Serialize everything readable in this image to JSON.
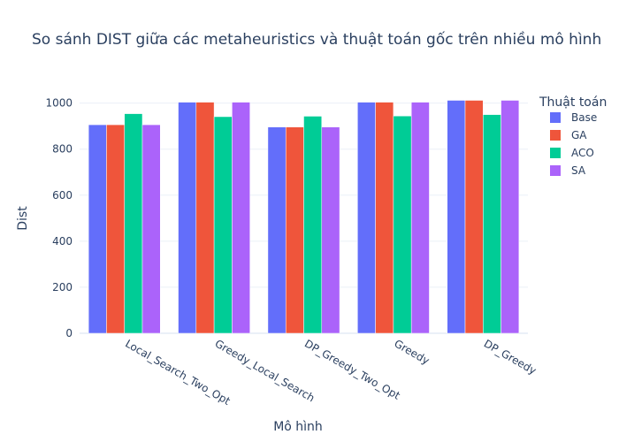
{
  "chart_data": {
    "type": "bar",
    "title": "So sánh DIST giữa các metaheuristics và thuật toán gốc trên nhiều mô hình",
    "xlabel": "Mô hình",
    "ylabel": "Dist",
    "ylim": [
      0,
      1060
    ],
    "yticks": [
      "0",
      "200",
      "400",
      "600",
      "800",
      "1000"
    ],
    "grid": true,
    "legend_title": "Thuật toán",
    "legend_position": "right",
    "categories": [
      "Local_Search_Two_Opt",
      "Greedy_Local_Search",
      "DP_Greedy_Two_Opt",
      "Greedy",
      "DP_Greedy"
    ],
    "series": [
      {
        "name": "Base",
        "color": "#636efa",
        "values": [
          906,
          1004,
          896,
          1004,
          1012
        ]
      },
      {
        "name": "GA",
        "color": "#ef553b",
        "values": [
          906,
          1004,
          896,
          1004,
          1012
        ]
      },
      {
        "name": "ACO",
        "color": "#00cc96",
        "values": [
          954,
          941,
          943,
          944,
          950
        ]
      },
      {
        "name": "SA",
        "color": "#ab63fa",
        "values": [
          906,
          1004,
          896,
          1004,
          1012
        ]
      }
    ]
  }
}
